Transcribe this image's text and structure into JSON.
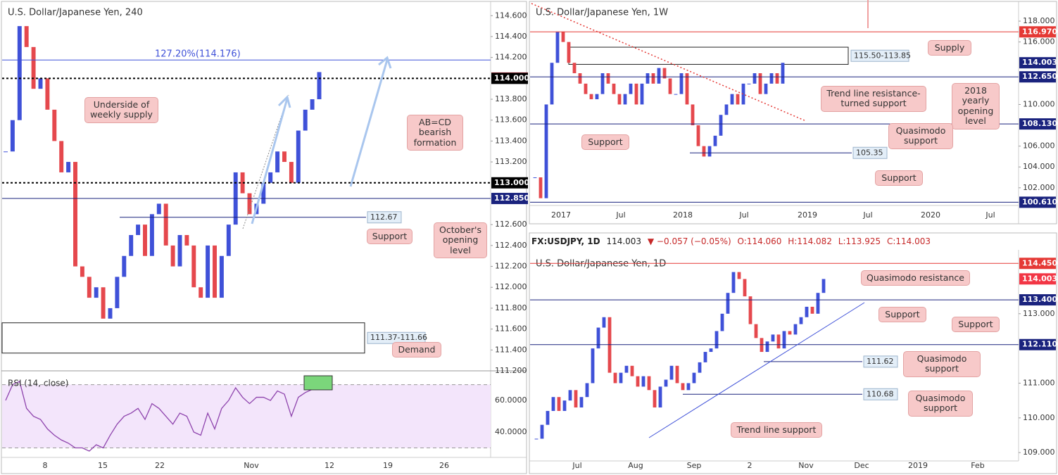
{
  "chart_data": [
    {
      "type": "candlestick",
      "title": "U.S. Dollar/Japanese Yen, 240",
      "colors": {
        "up": "#3f51d8",
        "down": "#e5484d"
      },
      "values": [
        113.3,
        113.6,
        114.5,
        114.3,
        113.9,
        114.0,
        113.7,
        113.4,
        113.1,
        113.2,
        112.2,
        112.1,
        111.9,
        112.0,
        111.7,
        111.8,
        112.1,
        112.3,
        112.5,
        112.6,
        112.3,
        112.7,
        112.8,
        112.4,
        112.2,
        112.5,
        112.4,
        112.0,
        111.9,
        112.4,
        111.9,
        112.3,
        112.6,
        113.1,
        112.9,
        112.7,
        112.8,
        113.0,
        113.1,
        113.3,
        113.2,
        113.0,
        113.5,
        113.7,
        113.8,
        114.06
      ],
      "ylim": [
        111.2,
        114.75
      ],
      "yticks": [
        {
          "value": 114.6,
          "label": "114.600"
        },
        {
          "value": 114.4,
          "label": "114.400"
        },
        {
          "value": 114.2,
          "label": "114.200"
        },
        {
          "value": 113.8,
          "label": "113.800"
        },
        {
          "value": 113.6,
          "label": "113.600"
        },
        {
          "value": 113.4,
          "label": "113.400"
        },
        {
          "value": 113.2,
          "label": "113.200"
        },
        {
          "value": 112.6,
          "label": "112.600"
        },
        {
          "value": 112.4,
          "label": "112.400"
        },
        {
          "value": 112.2,
          "label": "112.200"
        },
        {
          "value": 112.0,
          "label": "112.000"
        },
        {
          "value": 111.8,
          "label": "111.800"
        },
        {
          "value": 111.6,
          "label": "111.600"
        },
        {
          "value": 111.4,
          "label": "111.400"
        },
        {
          "value": 111.2,
          "label": "111.200"
        }
      ],
      "x_labels": [
        "8",
        "15",
        "22",
        "Nov",
        "12",
        "19",
        "26"
      ],
      "axis_labels": [
        {
          "value": 114.003,
          "label": "114.003",
          "color": "#f23645",
          "line": "none"
        },
        {
          "value": 114.0,
          "label": "114.000",
          "color": "#000000",
          "line": "dotted"
        },
        {
          "value": 113.0,
          "label": "113.000",
          "color": "#000000",
          "line": "dotted"
        },
        {
          "value": 112.85,
          "label": "112.850",
          "color": "#1a237e",
          "line": "solid"
        }
      ],
      "levels": [
        {
          "value": 114.176,
          "label": "127.20%(114.176)"
        },
        {
          "value": 112.67,
          "label": "112.67"
        }
      ],
      "zones": [
        {
          "low": 111.37,
          "high": 111.66,
          "label": "111.37-111.66"
        }
      ],
      "callouts": [
        "Underside of weekly supply",
        "AB=CD bearish formation",
        "October's opening level",
        "Support",
        "Demand"
      ],
      "rsi": {
        "title": "RSI (14, close)",
        "color": "#8e44ad",
        "values": [
          60,
          70,
          72,
          55,
          50,
          48,
          42,
          38,
          35,
          33,
          30,
          30,
          28,
          32,
          30,
          38,
          45,
          50,
          52,
          55,
          48,
          58,
          55,
          50,
          45,
          52,
          50,
          40,
          38,
          52,
          42,
          55,
          60,
          68,
          62,
          58,
          62,
          62,
          60,
          66,
          64,
          50,
          62,
          65,
          67,
          72
        ],
        "ylim": [
          24,
          78.7
        ],
        "yticks": [
          {
            "value": 60,
            "label": "60.0000"
          },
          {
            "value": 40,
            "label": "40.0000"
          }
        ],
        "bands": [
          30,
          70
        ]
      }
    },
    {
      "type": "candlestick",
      "title": "U.S. Dollar/Japanese Yen, 1W",
      "colors": {
        "up": "#3f51d8",
        "down": "#e5484d"
      },
      "values": [
        103,
        101,
        110,
        114,
        117,
        116,
        114,
        113,
        112,
        111,
        110.5,
        111,
        113,
        112,
        111,
        110,
        111,
        112,
        110,
        112,
        113,
        112,
        113.5,
        112.5,
        111,
        111,
        113,
        110,
        108,
        106,
        105,
        106,
        107,
        109,
        110,
        111,
        110,
        112,
        112,
        113,
        111,
        112,
        113,
        112,
        114.0
      ],
      "ylim": [
        100.3,
        120.03
      ],
      "yticks": [
        {
          "value": 118,
          "label": "118.000"
        },
        {
          "value": 116,
          "label": "116.000"
        },
        {
          "value": 110,
          "label": "110.000"
        },
        {
          "value": 106,
          "label": "106.000"
        },
        {
          "value": 104,
          "label": "104.000"
        },
        {
          "value": 102,
          "label": "102.000"
        }
      ],
      "x_labels": [
        "2017",
        "Jul",
        "2018",
        "Jul",
        "2019",
        "Jul",
        "2020",
        "Jul"
      ],
      "axis_labels": [
        {
          "value": 116.97,
          "label": "116.970",
          "color": "#e53935",
          "line": "red"
        },
        {
          "value": 114.003,
          "label": "114.003",
          "color": "#1a237e",
          "line": "none"
        },
        {
          "value": 112.65,
          "label": "112.650",
          "color": "#1a237e",
          "line": "solid"
        },
        {
          "value": 108.13,
          "label": "108.130",
          "color": "#1a237e",
          "line": "solid"
        },
        {
          "value": 100.61,
          "label": "100.610",
          "color": "#1a237e",
          "line": "solid"
        }
      ],
      "levels": [
        {
          "value": 105.35,
          "label": "105.35"
        }
      ],
      "zones": [
        {
          "low": 113.85,
          "high": 115.5,
          "label": "115.50-113.85"
        }
      ],
      "callouts": [
        "Supply",
        "2018 yearly opening level",
        "Trend line resistance-turned support",
        "Quasimodo support",
        "Support",
        "Support"
      ]
    },
    {
      "type": "candlestick",
      "title": "U.S. Dollar/Japanese Yen, 1D",
      "colors": {
        "up": "#3f51d8",
        "down": "#e5484d"
      },
      "values": [
        109.4,
        109.8,
        110.2,
        110.6,
        110.2,
        110.5,
        110.8,
        110.3,
        110.6,
        111.0,
        112.0,
        112.6,
        112.9,
        111.3,
        111.0,
        111.3,
        111.5,
        111.2,
        110.9,
        111.2,
        110.8,
        110.3,
        110.9,
        111.1,
        111.5,
        111.0,
        110.8,
        111.0,
        111.3,
        111.6,
        111.9,
        112.0,
        112.5,
        113.0,
        113.6,
        114.2,
        114.0,
        113.5,
        112.7,
        112.3,
        111.9,
        112.2,
        112.4,
        112.0,
        112.5,
        112.4,
        112.7,
        112.9,
        113.2,
        113.0,
        113.6,
        114.0
      ],
      "ylim": [
        108.76,
        114.8
      ],
      "yticks": [
        {
          "value": 113,
          "label": "113.000"
        },
        {
          "value": 111,
          "label": "111.000"
        },
        {
          "value": 110,
          "label": "110.000"
        },
        {
          "value": 109,
          "label": "109.000"
        }
      ],
      "x_labels": [
        "Jul",
        "Aug",
        "Sep",
        "2",
        "Nov",
        "Dec",
        "2019",
        "Feb"
      ],
      "axis_labels": [
        {
          "value": 114.45,
          "label": "114.450",
          "color": "#e53935",
          "line": "red"
        },
        {
          "value": 114.003,
          "label": "114.003",
          "color": "#f23645",
          "line": "none"
        },
        {
          "value": 113.4,
          "label": "113.400",
          "color": "#1a237e",
          "line": "solid"
        },
        {
          "value": 112.11,
          "label": "112.110",
          "color": "#1a237e",
          "line": "solid"
        }
      ],
      "levels": [
        {
          "value": 111.62,
          "label": "111.62"
        },
        {
          "value": 110.68,
          "label": "110.68"
        }
      ],
      "zones": [],
      "callouts": [
        "Quasimodo resistance",
        "Support",
        "Support",
        "Quasimodo support",
        "Quasimodo support",
        "Trend line support"
      ]
    }
  ],
  "info_bar": {
    "symbol": "FX:USDJPY, 1D",
    "last": "114.003",
    "change": "▼ −0.057 (−0.05%)",
    "open": "O:114.060",
    "high": "H:114.082",
    "low": "L:113.925",
    "close": "C:114.003"
  }
}
